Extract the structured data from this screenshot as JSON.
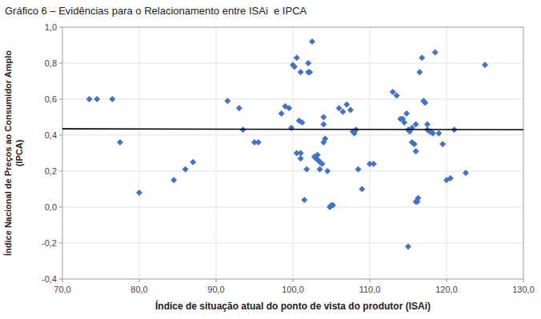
{
  "chart_data": {
    "type": "scatter",
    "title": "Gráfico 6 – Evidências para o Relacionamento entre ISAi  e IPCA",
    "xlabel": "Índice de situação atual do ponto de vista do produtor (ISAi)",
    "ylabel": "Índice Nacional de Preços ao Consumidor Amplo\n(IPCA)",
    "xlim": [
      70.0,
      130.0
    ],
    "ylim": [
      -0.4,
      1.0
    ],
    "xticks": [
      {
        "value": 70.0,
        "label": "70,0"
      },
      {
        "value": 80.0,
        "label": "80,0"
      },
      {
        "value": 90.0,
        "label": "90,0"
      },
      {
        "value": 100.0,
        "label": "100,0"
      },
      {
        "value": 110.0,
        "label": "110,0"
      },
      {
        "value": 120.0,
        "label": "120,0"
      },
      {
        "value": 130.0,
        "label": "130,0"
      }
    ],
    "yticks": [
      {
        "value": -0.4,
        "label": "-0,4"
      },
      {
        "value": -0.2,
        "label": "-0,2"
      },
      {
        "value": 0.0,
        "label": "0,0"
      },
      {
        "value": 0.2,
        "label": "0,2"
      },
      {
        "value": 0.4,
        "label": "0,4"
      },
      {
        "value": 0.6,
        "label": "0,6"
      },
      {
        "value": 0.8,
        "label": "0,8"
      },
      {
        "value": 1.0,
        "label": "1,0"
      }
    ],
    "grid": true,
    "series": [
      {
        "type": "scatter",
        "color": "#4472C4",
        "marker": "diamond",
        "x": [
          73.5,
          74.5,
          76.5,
          77.5,
          80.0,
          84.5,
          86.0,
          87.0,
          91.5,
          93.0,
          93.5,
          95.0,
          95.5,
          98.5,
          99.0,
          99.5,
          99.8,
          100.0,
          100.2,
          100.5,
          100.8,
          101.0,
          101.2,
          101.5,
          101.8,
          102.0,
          102.0,
          102.2,
          102.5,
          102.8,
          103.0,
          103.2,
          103.3,
          103.5,
          103.5,
          103.8,
          104.0,
          104.2,
          104.5,
          104.8,
          105.0,
          105.2,
          106.0,
          106.5,
          107.0,
          107.5,
          107.8,
          108.0,
          108.2,
          108.5,
          109.0,
          110.0,
          110.5,
          113.0,
          114.0,
          114.3,
          114.5,
          114.8,
          115.0,
          115.2,
          115.5,
          115.5,
          115.8,
          116.0,
          116.0,
          116.2,
          116.3,
          116.5,
          116.8,
          117.0,
          117.2,
          117.5,
          117.5,
          117.8,
          118.0,
          118.2,
          118.5,
          119.0,
          119.5,
          120.0,
          120.5,
          121.0,
          115.0,
          122.5,
          125.0,
          104.0,
          104.0,
          100.5,
          101.0,
          101.0,
          113.5,
          116.0
        ],
        "values": [
          0.6,
          0.6,
          0.6,
          0.36,
          0.08,
          0.15,
          0.21,
          0.25,
          0.59,
          0.55,
          0.43,
          0.36,
          0.36,
          0.52,
          0.56,
          0.55,
          0.44,
          0.79,
          0.78,
          0.83,
          0.48,
          0.75,
          0.47,
          0.04,
          0.21,
          0.8,
          0.75,
          0.75,
          0.92,
          0.28,
          0.27,
          0.29,
          0.26,
          0.25,
          0.21,
          0.24,
          0.36,
          0.38,
          0.2,
          0.0,
          0.01,
          0.01,
          0.55,
          0.53,
          0.57,
          0.54,
          0.42,
          0.41,
          0.43,
          0.21,
          0.1,
          0.24,
          0.24,
          0.64,
          0.49,
          0.49,
          0.47,
          0.52,
          0.43,
          0.42,
          0.44,
          0.36,
          0.35,
          0.46,
          0.31,
          0.03,
          0.05,
          0.75,
          0.83,
          0.59,
          0.58,
          0.46,
          0.43,
          0.42,
          0.42,
          0.41,
          0.86,
          0.41,
          0.35,
          0.15,
          0.16,
          0.43,
          -0.22,
          0.19,
          0.79,
          0.46,
          0.5,
          0.3,
          0.3,
          0.27,
          0.62,
          0.03
        ]
      },
      {
        "type": "line",
        "color": "#000000",
        "x": [
          70.0,
          130.0
        ],
        "values": [
          0.435,
          0.43
        ]
      }
    ]
  }
}
